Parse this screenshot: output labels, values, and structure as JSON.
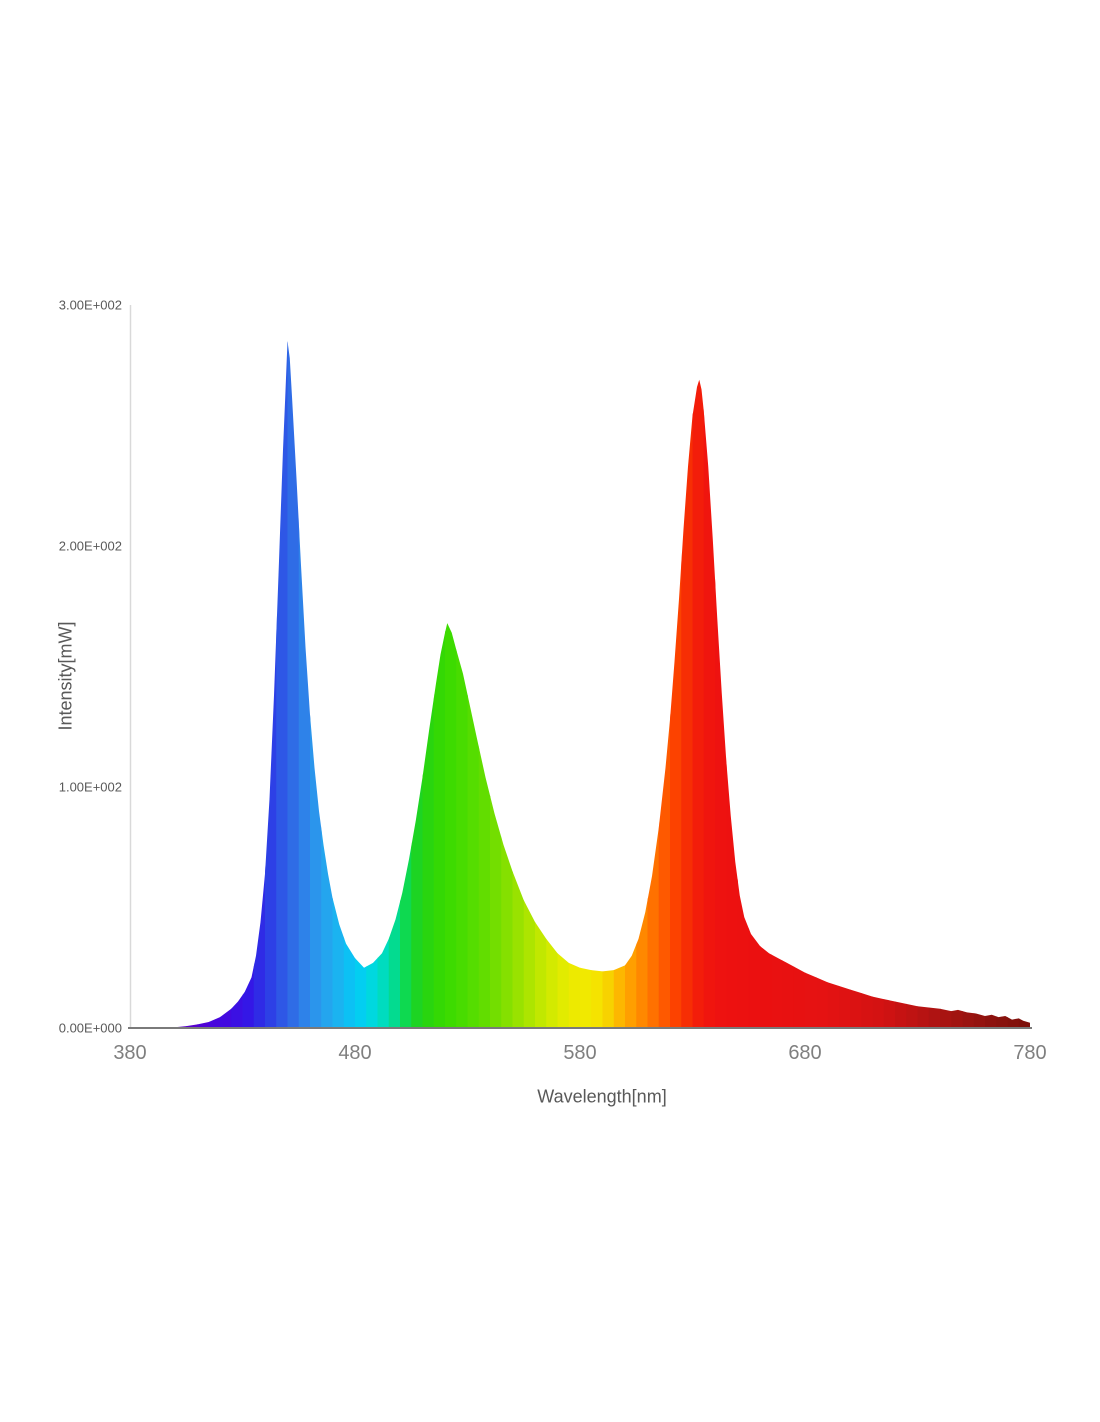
{
  "chart_data": {
    "type": "area",
    "description": "LED spectral power distribution with blue, green and red emission peaks, filled with visible-spectrum colors",
    "xlabel": "Wavelength[nm]",
    "ylabel": "Intensity[mW]",
    "xlim": [
      380,
      780
    ],
    "ylim": [
      0,
      300
    ],
    "grid": false,
    "x_ticks": [
      {
        "label": "380",
        "value": 380
      },
      {
        "label": "480",
        "value": 480
      },
      {
        "label": "580",
        "value": 580
      },
      {
        "label": "680",
        "value": 680
      },
      {
        "label": "780",
        "value": 780
      }
    ],
    "y_ticks": [
      {
        "label": "3.00E+002",
        "value": 300
      },
      {
        "label": "2.00E+002",
        "value": 200
      },
      {
        "label": "1.00E+002",
        "value": 100
      },
      {
        "label": "0.00E+000",
        "value": 0
      }
    ],
    "peaks": [
      {
        "wavelength_nm": 450,
        "intensity_mW": 285
      },
      {
        "wavelength_nm": 521,
        "intensity_mW": 168
      },
      {
        "wavelength_nm": 633,
        "intensity_mW": 269
      }
    ],
    "points": [
      [
        380,
        0
      ],
      [
        395,
        0
      ],
      [
        400,
        0.3
      ],
      [
        405,
        0.8
      ],
      [
        410,
        1.5
      ],
      [
        415,
        2.5
      ],
      [
        420,
        4.5
      ],
      [
        425,
        8
      ],
      [
        428,
        11
      ],
      [
        431,
        15
      ],
      [
        434,
        21
      ],
      [
        436,
        30
      ],
      [
        438,
        44
      ],
      [
        440,
        64
      ],
      [
        442,
        95
      ],
      [
        444,
        138
      ],
      [
        446,
        188
      ],
      [
        448,
        240
      ],
      [
        449,
        262
      ],
      [
        450,
        285
      ],
      [
        451,
        278
      ],
      [
        452,
        262
      ],
      [
        454,
        228
      ],
      [
        456,
        192
      ],
      [
        458,
        158
      ],
      [
        460,
        130
      ],
      [
        462,
        108
      ],
      [
        464,
        90
      ],
      [
        466,
        76
      ],
      [
        468,
        64
      ],
      [
        470,
        54
      ],
      [
        473,
        43
      ],
      [
        476,
        35
      ],
      [
        480,
        29
      ],
      [
        484,
        25
      ],
      [
        488,
        27
      ],
      [
        492,
        31
      ],
      [
        495,
        37
      ],
      [
        498,
        45
      ],
      [
        501,
        56
      ],
      [
        504,
        70
      ],
      [
        507,
        86
      ],
      [
        510,
        104
      ],
      [
        513,
        124
      ],
      [
        516,
        143
      ],
      [
        518,
        155
      ],
      [
        520,
        164
      ],
      [
        521,
        168
      ],
      [
        523,
        164
      ],
      [
        525,
        157
      ],
      [
        528,
        147
      ],
      [
        531,
        134
      ],
      [
        534,
        121
      ],
      [
        538,
        104
      ],
      [
        542,
        89
      ],
      [
        546,
        76
      ],
      [
        550,
        65
      ],
      [
        555,
        53
      ],
      [
        560,
        44
      ],
      [
        565,
        37
      ],
      [
        570,
        31
      ],
      [
        575,
        27
      ],
      [
        580,
        25
      ],
      [
        585,
        24
      ],
      [
        590,
        23.5
      ],
      [
        595,
        24
      ],
      [
        600,
        26
      ],
      [
        603,
        30
      ],
      [
        606,
        37
      ],
      [
        609,
        48
      ],
      [
        612,
        63
      ],
      [
        615,
        83
      ],
      [
        618,
        108
      ],
      [
        620,
        128
      ],
      [
        622,
        152
      ],
      [
        624,
        178
      ],
      [
        626,
        207
      ],
      [
        628,
        233
      ],
      [
        630,
        254
      ],
      [
        632,
        266
      ],
      [
        633,
        269
      ],
      [
        634,
        265
      ],
      [
        635,
        256
      ],
      [
        637,
        233
      ],
      [
        639,
        203
      ],
      [
        641,
        170
      ],
      [
        643,
        139
      ],
      [
        645,
        111
      ],
      [
        647,
        88
      ],
      [
        649,
        69
      ],
      [
        651,
        55
      ],
      [
        653,
        46
      ],
      [
        656,
        39
      ],
      [
        660,
        34
      ],
      [
        664,
        31
      ],
      [
        668,
        29
      ],
      [
        672,
        27
      ],
      [
        676,
        25
      ],
      [
        680,
        23
      ],
      [
        685,
        21
      ],
      [
        690,
        19
      ],
      [
        695,
        17.5
      ],
      [
        700,
        16
      ],
      [
        705,
        14.5
      ],
      [
        710,
        13
      ],
      [
        715,
        12
      ],
      [
        720,
        11
      ],
      [
        725,
        10
      ],
      [
        730,
        9
      ],
      [
        735,
        8.5
      ],
      [
        740,
        8
      ],
      [
        745,
        7
      ],
      [
        748,
        7.5
      ],
      [
        752,
        6.5
      ],
      [
        756,
        6
      ],
      [
        760,
        5
      ],
      [
        763,
        5.5
      ],
      [
        766,
        4.5
      ],
      [
        769,
        5
      ],
      [
        772,
        3.5
      ],
      [
        775,
        4
      ],
      [
        777,
        3
      ],
      [
        780,
        2.2
      ]
    ],
    "spectrum_color_stops": [
      [
        405,
        "#5a00c8"
      ],
      [
        415,
        "#4b04da"
      ],
      [
        425,
        "#3f0ce2"
      ],
      [
        433,
        "#3318e6"
      ],
      [
        440,
        "#2c35e6"
      ],
      [
        447,
        "#2e55e6"
      ],
      [
        452,
        "#2f6ae6"
      ],
      [
        458,
        "#2e84e9"
      ],
      [
        465,
        "#299eed"
      ],
      [
        472,
        "#1cb2f0"
      ],
      [
        478,
        "#0ac2f4"
      ],
      [
        484,
        "#00d2f0"
      ],
      [
        490,
        "#00dcd2"
      ],
      [
        496,
        "#00dca4"
      ],
      [
        502,
        "#0cd955"
      ],
      [
        508,
        "#1fd41e"
      ],
      [
        515,
        "#2fd606"
      ],
      [
        522,
        "#3cdb00"
      ],
      [
        530,
        "#4edd00"
      ],
      [
        538,
        "#63dd00"
      ],
      [
        546,
        "#7fdf00"
      ],
      [
        554,
        "#9fe300"
      ],
      [
        562,
        "#bfe800"
      ],
      [
        570,
        "#dceb00"
      ],
      [
        578,
        "#eeea00"
      ],
      [
        586,
        "#f4e800"
      ],
      [
        592,
        "#f6d500"
      ],
      [
        598,
        "#feb400"
      ],
      [
        604,
        "#ff9800"
      ],
      [
        610,
        "#ff7d00"
      ],
      [
        616,
        "#ff6000"
      ],
      [
        622,
        "#fc4400"
      ],
      [
        628,
        "#f62c04"
      ],
      [
        634,
        "#f2180c"
      ],
      [
        642,
        "#ee1210"
      ],
      [
        660,
        "#ea1010"
      ],
      [
        690,
        "#e41212"
      ],
      [
        715,
        "#d21212"
      ],
      [
        735,
        "#b31312"
      ],
      [
        750,
        "#9d1410"
      ],
      [
        765,
        "#8a120d"
      ],
      [
        780,
        "#7c100b"
      ]
    ],
    "band_nm": 5,
    "axis_colors": {
      "y_axis_line": "#d9d9d9",
      "x_axis_line": "#7a7a7a"
    }
  }
}
